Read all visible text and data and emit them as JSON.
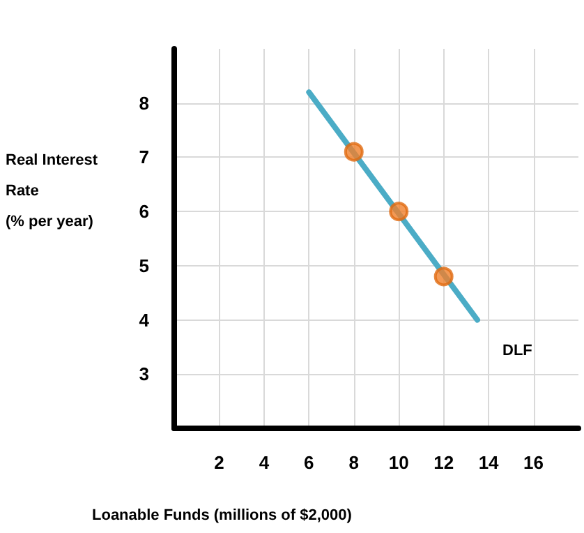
{
  "chart_data": {
    "type": "line",
    "xlabel": "Loanable Funds (millions of $2,000)",
    "ylabel": "Real Interest Rate\n(% per year)",
    "xlim": [
      0,
      18
    ],
    "xticks": [
      2,
      4,
      6,
      8,
      10,
      12,
      14,
      16
    ],
    "ylim": [
      2,
      9
    ],
    "yticks": [
      3,
      4,
      5,
      6,
      7,
      8
    ],
    "grid": true,
    "series": [
      {
        "type": "line",
        "name": "DLF",
        "color": "#4bacc6",
        "x": [
          6,
          13.5
        ],
        "values": [
          8.2,
          4.0
        ],
        "marker": "none",
        "line_style": "solid"
      },
      {
        "type": "scatter",
        "color": "#f0802a",
        "x": [
          8,
          10,
          12
        ],
        "values": [
          7.1,
          6.0,
          4.8
        ],
        "marker": "circle"
      }
    ]
  }
}
